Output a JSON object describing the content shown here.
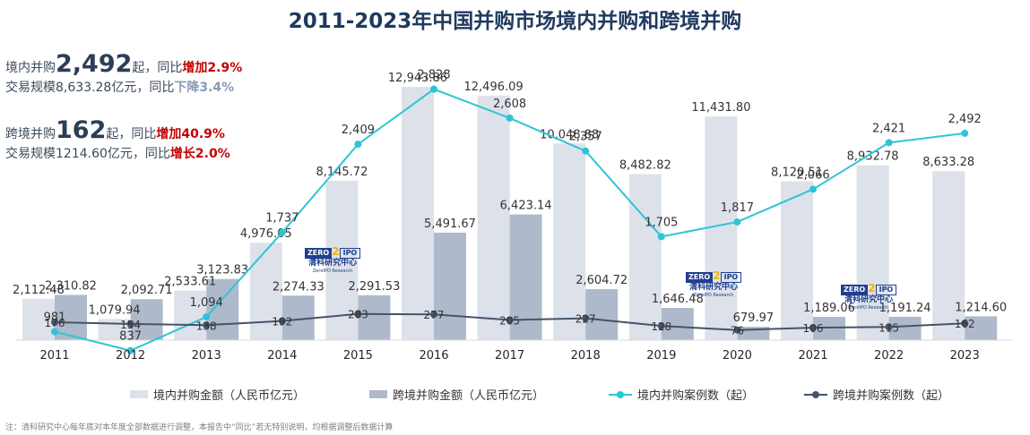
{
  "title": "2011-2023年中国并购市场境内并购和跨境并购",
  "summary": {
    "line1_prefix": "境内并购",
    "line1_value": "2,492",
    "line1_mid": "起，同比",
    "line1_change": "增加2.9%",
    "line2_prefix": "交易规模8,633.28亿元，同比",
    "line2_change": "下降3.4%",
    "line3_prefix": "跨境并购",
    "line3_value": "162",
    "line3_mid": "起，同比",
    "line3_change": "增加40.9%",
    "line4_prefix": "交易规模1214.60亿元，同比",
    "line4_change": "增长2.0%"
  },
  "logo": {
    "zero": "ZERO",
    "two": "2",
    "ipo": "IPO",
    "cn": "清科研究中心",
    "en": "ZeroIPO Research"
  },
  "footnote": "注：清科研究中心每年底对本年度全部数据进行调整，本报告中“同比”若无特别说明，均根据调整后数据计算",
  "chart_data": {
    "type": "bar",
    "categories": [
      "2011",
      "2012",
      "2013",
      "2014",
      "2015",
      "2016",
      "2017",
      "2018",
      "2019",
      "2020",
      "2021",
      "2022",
      "2023"
    ],
    "series": [
      {
        "name": "境内并购金额（人民币亿元）",
        "type": "bar",
        "color": "#dde2ea",
        "values": [
          2112.48,
          1079.94,
          2533.61,
          4976.05,
          8145.72,
          12943.86,
          12496.09,
          10048.88,
          8482.82,
          11431.8,
          8120.51,
          8932.78,
          8633.28
        ],
        "labels": [
          "2,112.48",
          "1,079.94",
          "2,533.61",
          "4,976.05",
          "8,145.72",
          "12,943.86",
          "12,496.09",
          "10,048.88",
          "8,482.82",
          "11,431.80",
          "8,120.51",
          "8,932.78",
          "8,633.28"
        ]
      },
      {
        "name": "跨境并购金额（人民币亿元）",
        "type": "bar",
        "color": "#aebacb",
        "values": [
          2310.82,
          2092.71,
          3123.83,
          2274.33,
          2291.53,
          5491.67,
          6423.14,
          2604.72,
          1646.48,
          679.97,
          1189.06,
          1191.24,
          1214.6
        ],
        "labels": [
          "2,310.82",
          "2,092.71",
          "3,123.83",
          "2,274.33",
          "2,291.53",
          "5,491.67",
          "6,423.14",
          "2,604.72",
          "1,646.48",
          "679.97",
          "1,189.06",
          "1,191.24",
          "1,214.60"
        ]
      },
      {
        "name": "境内并购案例数（起）",
        "type": "line",
        "color": "#2ec4d6",
        "values": [
          981,
          837,
          1094,
          1737,
          2409,
          2828,
          2608,
          2357,
          1705,
          1817,
          2066,
          2421,
          2492
        ],
        "labels": [
          "981",
          "837",
          "1,094",
          "1,737",
          "2,409",
          "2,828",
          "2,608",
          "2,357",
          "1,705",
          "1,817",
          "2,066",
          "2,421",
          "2,492"
        ]
      },
      {
        "name": "跨境并购案例数（起）",
        "type": "line",
        "color": "#44546a",
        "values": [
          176,
          154,
          138,
          192,
          283,
          277,
          205,
          227,
          128,
          76,
          106,
          115,
          162
        ],
        "labels": [
          "176",
          "154",
          "138",
          "192",
          "283",
          "277",
          "205",
          "227",
          "128",
          "76",
          "106",
          "115",
          "162"
        ]
      }
    ],
    "legend_position": "bottom",
    "grid": false
  }
}
